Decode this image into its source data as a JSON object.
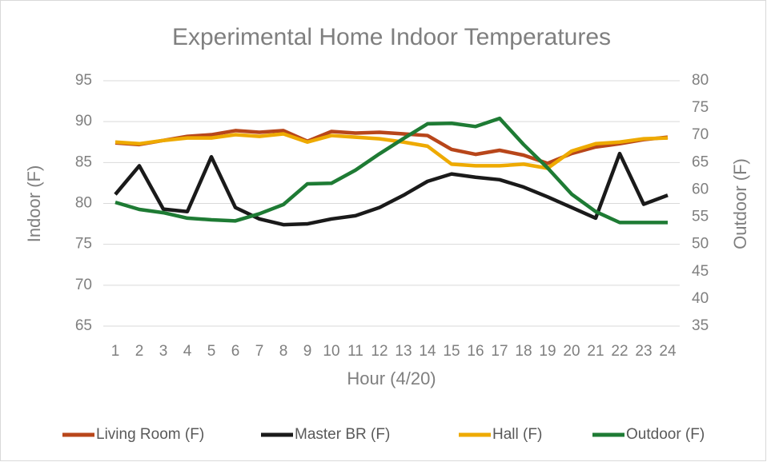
{
  "chart_data": {
    "type": "line",
    "title": "Experimental Home Indoor Temperatures",
    "x_label": "Hour (4/20)",
    "y_label": "Indoor (F)",
    "y2_label": "Outdoor (F)",
    "categories": [
      "1",
      "2",
      "3",
      "4",
      "5",
      "6",
      "7",
      "8",
      "9",
      "10",
      "11",
      "12",
      "13",
      "14",
      "15",
      "16",
      "17",
      "18",
      "19",
      "20",
      "21",
      "22",
      "23",
      "24"
    ],
    "ylim": [
      65,
      95
    ],
    "yticks": [
      65,
      70,
      75,
      80,
      85,
      90,
      95
    ],
    "y2lim": [
      35,
      80
    ],
    "y2ticks": [
      35,
      40,
      45,
      50,
      55,
      60,
      65,
      70,
      75,
      80
    ],
    "grid": true,
    "legend": "bottom",
    "series": [
      {
        "name": "Living Room (F)",
        "color": "#b8461a",
        "values": [
          87.4,
          87.2,
          87.7,
          88.2,
          88.4,
          88.9,
          88.7,
          88.9,
          87.6,
          88.8,
          88.6,
          88.7,
          88.5,
          88.3,
          86.6,
          86.0,
          86.5,
          85.9,
          84.9,
          86.1,
          86.9,
          87.3,
          87.8,
          88.1
        ]
      },
      {
        "name": "Master BR (F)",
        "color": "#1a1a1a",
        "values": [
          81.1,
          84.6,
          79.3,
          79.0,
          85.7,
          79.5,
          78.1,
          77.4,
          77.5,
          78.1,
          78.5,
          79.5,
          81.0,
          82.7,
          83.6,
          83.2,
          82.9,
          82.0,
          80.8,
          79.5,
          78.2,
          86.1,
          79.9,
          81.0
        ]
      },
      {
        "name": "Hall (F)",
        "color": "#eeaa00",
        "values": [
          87.5,
          87.3,
          87.7,
          88.0,
          88.0,
          88.4,
          88.2,
          88.5,
          87.5,
          88.3,
          88.1,
          87.9,
          87.5,
          87.0,
          84.8,
          84.6,
          84.6,
          84.8,
          84.3,
          86.4,
          87.3,
          87.5,
          87.9,
          88.0
        ]
      },
      {
        "name": "Outdoor (F)",
        "color": "#1e7b34",
        "axis": "y2",
        "values": [
          57.7,
          56.4,
          55.8,
          54.8,
          54.5,
          54.3,
          55.6,
          57.3,
          61.1,
          61.2,
          63.6,
          66.6,
          69.4,
          72.1,
          72.2,
          71.6,
          73.1,
          68.3,
          64.0,
          59.2,
          56.0,
          54.0,
          54.0,
          54.0
        ]
      }
    ]
  }
}
